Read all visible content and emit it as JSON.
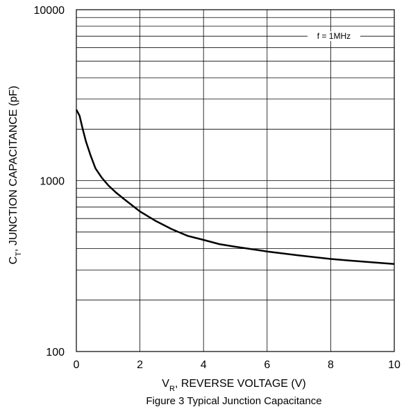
{
  "chart_data": {
    "type": "line",
    "caption": "Figure 3 Typical Junction Capacitance",
    "xlabel": {
      "prefix": "V",
      "sub": "R",
      "rest": ", REVERSE VOLTAGE (V)"
    },
    "ylabel": {
      "prefix": "C",
      "sub": "T",
      "rest": ",  JUNCTION CAPACITANCE (pF)"
    },
    "xlim": [
      0,
      10
    ],
    "ylim": [
      100,
      10000
    ],
    "yscale": "log",
    "grid": true,
    "x_ticks": [
      "0",
      "2",
      "4",
      "6",
      "8",
      "10"
    ],
    "y_ticks": [
      "100",
      "1000",
      "10000"
    ],
    "annotation": "f = 1MHz",
    "line_color": "#000000",
    "series": [
      {
        "x": [
          0,
          0.1,
          0.2,
          0.3,
          0.45,
          0.6,
          0.8,
          1.0,
          1.25,
          1.5,
          2.0,
          2.5,
          3.0,
          3.5,
          4.0,
          4.5,
          5.0,
          6.0,
          7.0,
          8.0,
          9.0,
          10.0
        ],
        "y": [
          2600,
          2400,
          2000,
          1700,
          1400,
          1180,
          1040,
          940,
          850,
          780,
          660,
          580,
          520,
          475,
          450,
          425,
          410,
          385,
          365,
          348,
          336,
          325
        ]
      }
    ]
  }
}
